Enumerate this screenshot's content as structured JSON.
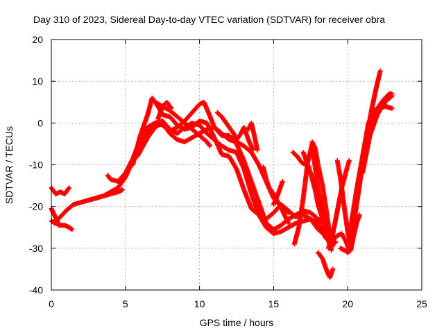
{
  "chart_data": {
    "type": "scatter",
    "title": "Day 310 of 2023, Sidereal Day-to-day VTEC variation (SDTVAR) for receiver obra",
    "xlabel": "GPS time / hours",
    "ylabel": "SDTVAR / TECUs",
    "xlim": [
      0,
      25
    ],
    "ylim": [
      -40,
      20
    ],
    "xticks": [
      "0",
      "5",
      "10",
      "15",
      "20",
      "25"
    ],
    "yticks": [
      "-40",
      "-30",
      "-20",
      "-10",
      "0",
      "10",
      "20"
    ],
    "grid": true,
    "marker": "plus",
    "color": "#ff0000",
    "series": [
      {
        "x": [
          0.0,
          0.3,
          0.6,
          0.9,
          1.2
        ],
        "y": [
          -15.5,
          -17.0,
          -16.5,
          -17.0,
          -15.5
        ]
      },
      {
        "x": [
          0.0,
          0.3,
          0.6,
          0.9,
          1.2,
          1.4
        ],
        "y": [
          -23.5,
          -24.0,
          -24.5,
          -24.5,
          -25.0,
          -25.5
        ]
      },
      {
        "x": [
          0.0,
          0.2,
          0.4,
          0.5
        ],
        "y": [
          -20.5,
          -22.0,
          -23.5,
          -24.5
        ]
      },
      {
        "x": [
          0.2,
          0.6,
          1.0,
          1.5,
          2.0,
          2.5,
          3.0,
          3.5,
          4.0,
          4.5,
          4.8
        ],
        "y": [
          -24.0,
          -22.5,
          -21.0,
          -19.5,
          -19.0,
          -18.5,
          -18.0,
          -17.5,
          -17.0,
          -16.5,
          -16.0
        ]
      },
      {
        "x": [
          2.5,
          3.0,
          3.5,
          4.0,
          4.5,
          5.0,
          5.5,
          6.0,
          6.5,
          7.0,
          7.5,
          8.0,
          8.5,
          9.0,
          9.5,
          10.0,
          10.3,
          10.6,
          11.0,
          11.5,
          12.0,
          12.5,
          13.0,
          13.5,
          14.0,
          14.5,
          15.0,
          15.5,
          16.0,
          16.5,
          17.0,
          17.5,
          18.0,
          18.3
        ],
        "y": [
          -18.5,
          -18.0,
          -17.5,
          -16.5,
          -15.5,
          -13.0,
          -9.0,
          -5.0,
          -2.0,
          0.0,
          -0.5,
          -2.0,
          -1.0,
          0.5,
          2.5,
          4.5,
          5.0,
          2.5,
          -1.0,
          -3.0,
          -3.0,
          -5.0,
          -9.0,
          -14.0,
          -19.0,
          -24.0,
          -25.5,
          -24.5,
          -23.0,
          -22.0,
          -21.0,
          -21.5,
          -23.0,
          -24.0
        ]
      },
      {
        "x": [
          3.8,
          4.0,
          4.5,
          5.0,
          5.5,
          6.0,
          6.5,
          7.0,
          7.5,
          8.0,
          8.5,
          9.0,
          9.5,
          10.0,
          10.5,
          11.0,
          11.5,
          12.0,
          12.5,
          13.0,
          13.5,
          14.0,
          14.5,
          15.0,
          15.5,
          16.0,
          16.5,
          17.0,
          17.5,
          18.0,
          18.5,
          19.0,
          19.2
        ],
        "y": [
          -12.5,
          -13.5,
          -14.0,
          -12.0,
          -8.5,
          -4.0,
          -1.0,
          0.0,
          0.5,
          -1.5,
          -2.5,
          -1.0,
          0.0,
          -0.5,
          -2.5,
          -4.0,
          -5.5,
          -6.5,
          -7.0,
          -11.0,
          -17.0,
          -22.0,
          -25.0,
          -26.5,
          -26.0,
          -25.0,
          -24.0,
          -23.5,
          -23.0,
          -24.0,
          -27.5,
          -29.0,
          -28.5
        ]
      },
      {
        "x": [
          5.5,
          6.0,
          6.5,
          6.8,
          7.2,
          7.5,
          8.0,
          8.5,
          9.0,
          9.5,
          10.0,
          10.5,
          11.0,
          11.5,
          12.0,
          12.5,
          13.0,
          13.5,
          14.0,
          14.5,
          15.0,
          15.5,
          16.0,
          16.5,
          17.0,
          17.5,
          18.0,
          18.5
        ],
        "y": [
          -10.0,
          -3.0,
          2.0,
          6.0,
          4.0,
          2.0,
          1.5,
          -0.5,
          -1.5,
          -1.0,
          0.5,
          0.0,
          -3.5,
          -7.5,
          -8.0,
          -11.0,
          -16.0,
          -20.5,
          -22.0,
          -23.0,
          -21.5,
          -19.5,
          -21.0,
          -22.5,
          -22.0,
          -23.0,
          -25.5,
          -27.0
        ]
      },
      {
        "x": [
          5.8,
          6.5,
          7.0,
          7.5,
          8.0,
          8.5,
          9.0,
          9.5,
          10.0,
          10.5,
          11.0,
          11.5,
          12.0,
          12.5,
          13.0,
          13.5,
          14.0,
          14.5,
          15.0,
          15.5,
          16.0
        ],
        "y": [
          -8.0,
          -3.5,
          -1.0,
          0.0,
          -2.5,
          -4.0,
          -4.5,
          -3.5,
          -2.5,
          -1.5,
          -1.0,
          -2.5,
          -4.0,
          -4.5,
          -5.5,
          -7.0,
          -10.0,
          -14.0,
          -18.0,
          -20.0,
          -21.5
        ]
      },
      {
        "x": [
          7.0,
          7.5,
          8.0,
          8.5,
          9.0,
          9.5,
          10.0,
          10.5,
          10.7
        ],
        "y": [
          5.0,
          4.0,
          3.0,
          1.5,
          0.0,
          -1.5,
          -3.0,
          -4.5,
          -5.5
        ]
      },
      {
        "x": [
          7.2,
          7.5,
          7.8,
          8.1
        ],
        "y": [
          1.0,
          4.0,
          5.0,
          3.5
        ]
      },
      {
        "x": [
          11.2,
          11.5,
          11.8,
          12.0,
          12.3,
          12.5,
          12.8,
          13.0,
          13.3,
          13.6
        ],
        "y": [
          2.5,
          1.5,
          0.0,
          -1.0,
          -2.5,
          -4.0,
          -2.5,
          -1.0,
          -4.0,
          -6.5
        ]
      },
      {
        "x": [
          13.3,
          13.5,
          13.7,
          13.9
        ],
        "y": [
          -1.5,
          0.0,
          -3.0,
          -6.5
        ]
      },
      {
        "x": [
          14.3,
          14.5,
          14.7,
          15.0,
          15.3,
          15.6,
          16.0
        ],
        "y": [
          -10.5,
          -13.5,
          -15.5,
          -17.0,
          -19.0,
          -21.0,
          -24.0
        ]
      },
      {
        "x": [
          15.0,
          15.3,
          15.6
        ],
        "y": [
          -19.5,
          -17.0,
          -14.0
        ]
      },
      {
        "x": [
          16.4,
          16.7,
          17.0,
          17.3,
          17.6,
          18.0,
          18.4,
          18.8,
          19.0
        ],
        "y": [
          -29.0,
          -25.0,
          -18.0,
          -9.5,
          -5.0,
          -16.0,
          -22.5,
          -26.5,
          -28.0
        ]
      },
      {
        "x": [
          16.3,
          16.6,
          16.9,
          17.2,
          17.4
        ],
        "y": [
          -7.0,
          -8.0,
          -9.5,
          -10.0,
          -10.5
        ]
      },
      {
        "x": [
          17.0,
          17.2,
          17.5,
          17.8,
          18.0,
          18.3,
          18.6,
          18.9
        ],
        "y": [
          -7.0,
          -9.0,
          -12.0,
          -16.0,
          -19.5,
          -23.0,
          -27.0,
          -30.5
        ]
      },
      {
        "x": [
          17.6,
          17.8,
          18.0,
          18.3,
          18.6,
          18.8,
          19.0
        ],
        "y": [
          -4.5,
          -6.0,
          -10.0,
          -15.0,
          -22.0,
          -27.0,
          -29.5
        ]
      },
      {
        "x": [
          18.0,
          18.3,
          18.6,
          18.8,
          19.0
        ],
        "y": [
          -31.0,
          -32.5,
          -35.5,
          -37.0,
          -35.0
        ]
      },
      {
        "x": [
          18.7,
          19.0,
          19.3,
          19.6,
          19.9,
          20.1
        ],
        "y": [
          -30.0,
          -26.5,
          -21.0,
          -15.5,
          -11.5,
          -9.0
        ]
      },
      {
        "x": [
          19.0,
          19.3,
          19.6,
          19.9,
          20.1
        ],
        "y": [
          -28.0,
          -27.0,
          -26.5,
          -28.5,
          -30.5
        ]
      },
      {
        "x": [
          19.3,
          19.5,
          19.8,
          20.0,
          20.2
        ],
        "y": [
          -9.0,
          -13.0,
          -21.0,
          -26.0,
          -29.0
        ]
      },
      {
        "x": [
          19.5,
          19.8,
          20.0,
          20.2,
          20.4,
          20.6,
          20.8
        ],
        "y": [
          -30.0,
          -30.5,
          -31.0,
          -30.5,
          -27.0,
          -24.0,
          -22.0
        ]
      },
      {
        "x": [
          20.0,
          20.5,
          21.0,
          21.3,
          21.6,
          21.9,
          22.2
        ],
        "y": [
          -31.0,
          -22.0,
          -10.0,
          -3.0,
          3.0,
          8.0,
          12.5
        ]
      },
      {
        "x": [
          20.2,
          20.6,
          21.0,
          21.4,
          21.8,
          22.2,
          22.5
        ],
        "y": [
          -25.0,
          -16.0,
          -8.0,
          0.0,
          3.0,
          4.0,
          4.5
        ]
      },
      {
        "x": [
          20.4,
          20.8,
          21.2,
          21.6,
          22.0,
          22.4,
          22.8,
          23.0
        ],
        "y": [
          -22.0,
          -13.0,
          -6.0,
          -1.0,
          3.5,
          5.5,
          7.0,
          7.0
        ]
      },
      {
        "x": [
          21.0,
          21.5,
          22.0,
          22.5,
          23.0
        ],
        "y": [
          -12.0,
          -3.0,
          2.0,
          5.0,
          6.5
        ]
      },
      {
        "x": [
          22.0,
          22.5,
          23.0
        ],
        "y": [
          3.0,
          4.0,
          3.5
        ]
      }
    ]
  }
}
